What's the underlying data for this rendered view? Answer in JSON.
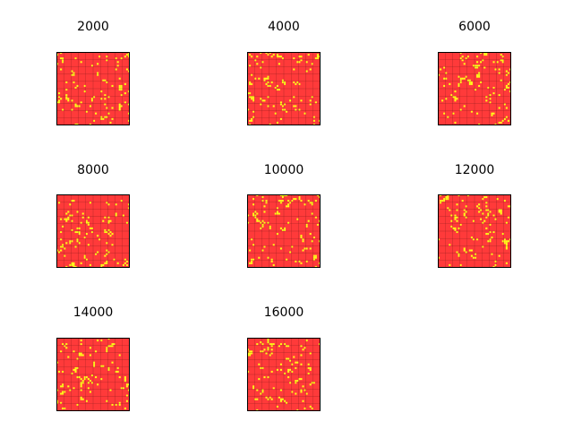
{
  "chart_data": {
    "type": "heatmap",
    "description_colors": {
      "background_cell": "#ff3a3a",
      "hot_cell": "#ffff1a",
      "grid_line": "#7a1a1a",
      "frame": "#000000"
    },
    "grid_size": 40,
    "panels": [
      {
        "title": "2000",
        "seed": 11
      },
      {
        "title": "4000",
        "seed": 23
      },
      {
        "title": "6000",
        "seed": 37
      },
      {
        "title": "8000",
        "seed": 41
      },
      {
        "title": "10000",
        "seed": 53
      },
      {
        "title": "12000",
        "seed": 67
      },
      {
        "title": "14000",
        "seed": 79
      },
      {
        "title": "16000",
        "seed": 83
      }
    ]
  }
}
